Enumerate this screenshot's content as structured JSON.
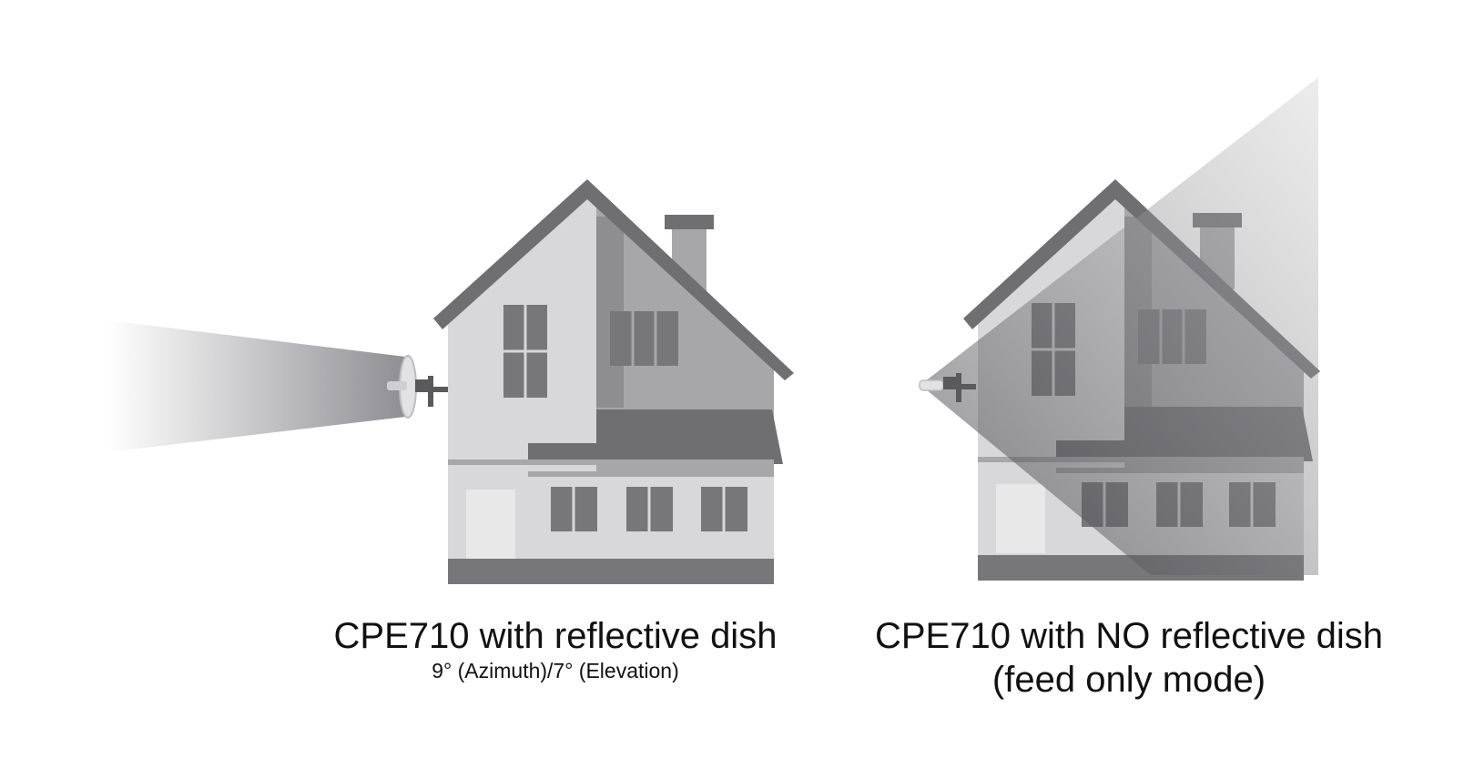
{
  "left_panel": {
    "title": "CPE710 with reflective dish",
    "subtitle": "9° (Azimuth)/7° (Elevation)"
  },
  "right_panel": {
    "title": "CPE710 with NO reflective dish",
    "subtitle": "(feed only mode)"
  },
  "colors": {
    "background": "#ffffff",
    "wall_light": "#d8d8da",
    "wall_mid": "#a7a7aa",
    "roof": "#6f6f72",
    "window": "#77777a",
    "door": "#e8e8e9",
    "beam_start": "#8f8f93",
    "beam_end": "#ffffff",
    "text": "#111111"
  }
}
